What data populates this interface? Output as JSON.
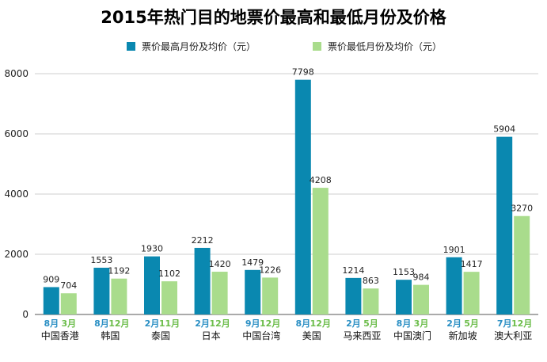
{
  "chart_data": {
    "type": "bar",
    "title": "2015年热门目的地票价最高和最低月份及价格",
    "xlabel": "",
    "ylabel": "",
    "ylim": [
      0,
      8000
    ],
    "yticks": [
      0,
      2000,
      4000,
      6000,
      8000
    ],
    "grid": true,
    "legend_position": "top",
    "categories": [
      "中国香港",
      "韩国",
      "泰国",
      "日本",
      "中国台湾",
      "美国",
      "马来西亚",
      "中国澳门",
      "新加坡",
      "澳大利亚"
    ],
    "series": [
      {
        "name": "票价最高月份及均价（元）",
        "color": "#0a88b0",
        "values": [
          909,
          1553,
          1930,
          2212,
          1479,
          7798,
          1214,
          1153,
          1901,
          5904
        ],
        "months": [
          "8月",
          "8月",
          "2月",
          "2月",
          "9月",
          "8月",
          "2月",
          "8月",
          "2月",
          "7月"
        ]
      },
      {
        "name": "票价最低月份及均价（元）",
        "color": "#a9dc8c",
        "values": [
          704,
          1192,
          1102,
          1420,
          1226,
          4208,
          863,
          984,
          1417,
          3270
        ],
        "months": [
          "3月",
          "12月",
          "11月",
          "12月",
          "12月",
          "12月",
          "5月",
          "3月",
          "5月",
          "12月"
        ]
      }
    ]
  }
}
